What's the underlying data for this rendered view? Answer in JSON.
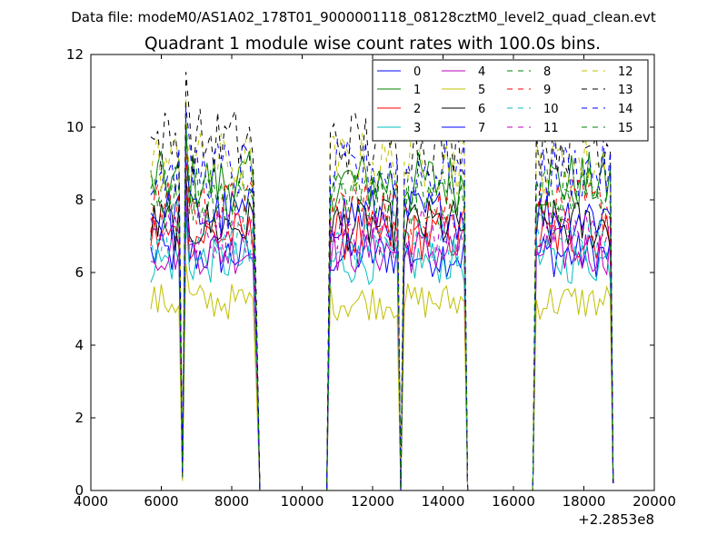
{
  "chart_data": {
    "type": "line",
    "suptitle": "Data file: modeM0/AS1A02_178T01_9000001118_08128cztM0_level2_quad_clean.evt",
    "title": "Quadrant 1 module wise count rates with 100.0s bins.",
    "xlabel": "",
    "ylabel": "",
    "xlim": [
      4000,
      20000
    ],
    "ylim": [
      0,
      12
    ],
    "x_offset_label": "+2.2853e8",
    "xticks": [
      "4000",
      "6000",
      "8000",
      "10000",
      "12000",
      "14000",
      "16000",
      "18000",
      "20000"
    ],
    "yticks": [
      "0",
      "2",
      "4",
      "6",
      "8",
      "10",
      "12"
    ],
    "grid": false,
    "legend_position": "top-right",
    "legend_columns": 4,
    "segments": [
      {
        "start": 5700,
        "end": 8700
      },
      {
        "start": 10800,
        "end": 12700
      },
      {
        "start": 12900,
        "end": 14600
      },
      {
        "start": 16650,
        "end": 18800
      }
    ],
    "dip": {
      "x": 6600,
      "fraction": 0.05
    },
    "peak": {
      "x": 6700,
      "fraction": 1.2
    },
    "noise_amplitude_fraction": 0.1,
    "series": [
      {
        "name": "0",
        "color": "#0000ff",
        "dashed": false,
        "level": 6.5
      },
      {
        "name": "1",
        "color": "#008000",
        "dashed": false,
        "level": 8.5
      },
      {
        "name": "2",
        "color": "#ff0000",
        "dashed": false,
        "level": 7.0
      },
      {
        "name": "3",
        "color": "#00bfbf",
        "dashed": false,
        "level": 6.3
      },
      {
        "name": "4",
        "color": "#bf00bf",
        "dashed": false,
        "level": 6.6
      },
      {
        "name": "5",
        "color": "#bfbf00",
        "dashed": false,
        "level": 5.2
      },
      {
        "name": "6",
        "color": "#000000",
        "dashed": false,
        "level": 7.3
      },
      {
        "name": "7",
        "color": "#0000ff",
        "dashed": false,
        "level": 7.6
      },
      {
        "name": "8",
        "color": "#008000",
        "dashed": true,
        "level": 8.2
      },
      {
        "name": "9",
        "color": "#ff0000",
        "dashed": true,
        "level": 7.8
      },
      {
        "name": "10",
        "color": "#00bfbf",
        "dashed": true,
        "level": 6.9
      },
      {
        "name": "11",
        "color": "#bf00bf",
        "dashed": true,
        "level": 7.1
      },
      {
        "name": "12",
        "color": "#bfbf00",
        "dashed": true,
        "level": 9.0
      },
      {
        "name": "13",
        "color": "#000000",
        "dashed": true,
        "level": 9.6
      },
      {
        "name": "14",
        "color": "#0000ff",
        "dashed": true,
        "level": 8.8
      },
      {
        "name": "15",
        "color": "#008000",
        "dashed": true,
        "level": 8.0
      }
    ]
  }
}
